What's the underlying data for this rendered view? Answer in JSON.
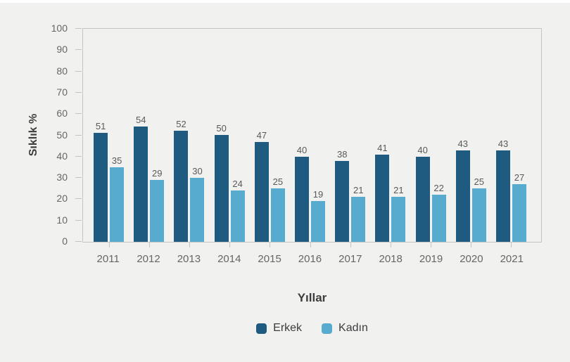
{
  "page": {
    "background_color": "#f1f1f0",
    "top_strip_color": "#ffffff"
  },
  "chart_data": {
    "type": "bar",
    "title": "",
    "categories": [
      "2011",
      "2012",
      "2013",
      "2014",
      "2015",
      "2016",
      "2017",
      "2018",
      "2019",
      "2020",
      "2021"
    ],
    "series": [
      {
        "name": "Erkek",
        "key": "erkek",
        "color": "#1f5a80",
        "values": [
          51,
          54,
          52,
          50,
          47,
          40,
          38,
          41,
          40,
          43,
          43
        ]
      },
      {
        "name": "Kadın",
        "key": "kadin",
        "color": "#57abce",
        "values": [
          35,
          29,
          30,
          24,
          25,
          19,
          21,
          21,
          22,
          25,
          27
        ]
      }
    ],
    "xlabel": "Yıllar",
    "ylabel": "Sıklık %",
    "ylim": [
      0,
      100
    ],
    "ytick_step": 10,
    "grid": false,
    "legend_position": "bottom",
    "bar_value_labels": true
  },
  "style": {
    "axis_line_color": "#c4c4c4",
    "tick_label_color": "#666666",
    "bar_value_label_color": "#595959",
    "axis_title_color": "#3d3d3d"
  }
}
